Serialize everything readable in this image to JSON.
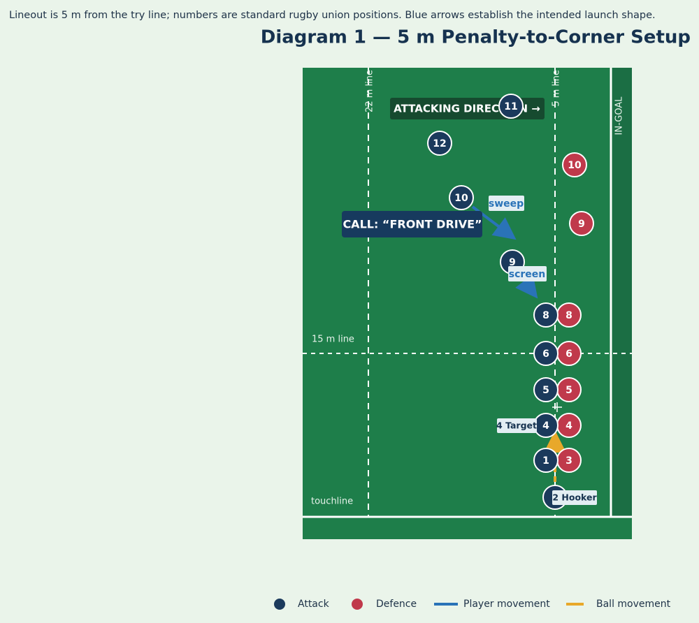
{
  "caption": "Lineout is 5 m from the try line; numbers are standard rugby union positions. Blue arrows establish the intended launch shape.",
  "title": "Diagram 1 — 5 m Penalty-to-Corner Setup",
  "field_labels": {
    "line22": "22 m line",
    "line5": "5 m line",
    "in_goal": "IN-GOAL",
    "line15": "15 m line",
    "touchline": "touchline"
  },
  "banners": {
    "direction": "ATTACKING DIRECTION →",
    "call": "CALL: “FRONT DRIVE”"
  },
  "annotations": {
    "sweep": "sweep",
    "screen": "screen",
    "target": "4 Target",
    "hooker": "2 Hooker"
  },
  "attack": [
    "11",
    "12",
    "10",
    "9",
    "8",
    "6",
    "5",
    "4",
    "1"
  ],
  "defence": [
    "10",
    "9",
    "8",
    "6",
    "5",
    "4",
    "3"
  ],
  "legend": [
    "Attack",
    "Defence",
    "Player movement",
    "Ball movement"
  ]
}
